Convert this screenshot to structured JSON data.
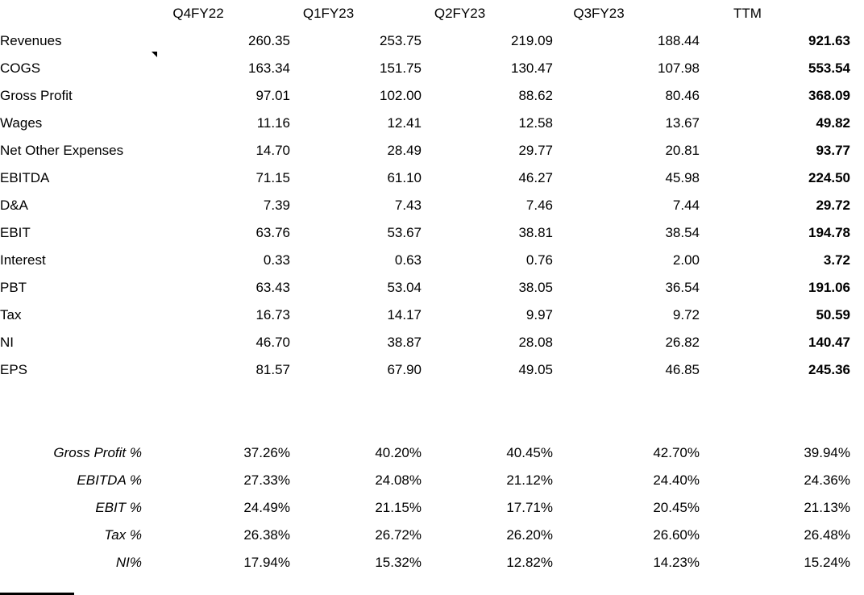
{
  "table": {
    "columns": [
      "",
      "Q4FY22",
      "Q1FY23",
      "Q2FY23",
      "Q3FY23",
      "TTM"
    ],
    "rows": [
      {
        "label": "Revenues",
        "values": [
          "260.35",
          "253.75",
          "219.09",
          "188.44",
          "921.63"
        ]
      },
      {
        "label": "COGS",
        "note": true,
        "values": [
          "163.34",
          "151.75",
          "130.47",
          "107.98",
          "553.54"
        ]
      },
      {
        "label": "Gross Profit",
        "values": [
          "97.01",
          "102.00",
          "88.62",
          "80.46",
          "368.09"
        ]
      },
      {
        "label": "Wages",
        "values": [
          "11.16",
          "12.41",
          "12.58",
          "13.67",
          "49.82"
        ]
      },
      {
        "label": "Net Other Expenses",
        "values": [
          "14.70",
          "28.49",
          "29.77",
          "20.81",
          "93.77"
        ]
      },
      {
        "label": "EBITDA",
        "values": [
          "71.15",
          "61.10",
          "46.27",
          "45.98",
          "224.50"
        ]
      },
      {
        "label": "D&A",
        "values": [
          "7.39",
          "7.43",
          "7.46",
          "7.44",
          "29.72"
        ]
      },
      {
        "label": "EBIT",
        "values": [
          "63.76",
          "53.67",
          "38.81",
          "38.54",
          "194.78"
        ]
      },
      {
        "label": "Interest",
        "values": [
          "0.33",
          "0.63",
          "0.76",
          "2.00",
          "3.72"
        ]
      },
      {
        "label": "PBT",
        "values": [
          "63.43",
          "53.04",
          "38.05",
          "36.54",
          "191.06"
        ]
      },
      {
        "label": "Tax",
        "values": [
          "16.73",
          "14.17",
          "9.97",
          "9.72",
          "50.59"
        ]
      },
      {
        "label": "NI",
        "values": [
          "46.70",
          "38.87",
          "28.08",
          "26.82",
          "140.47"
        ]
      },
      {
        "label": "EPS",
        "values": [
          "81.57",
          "67.90",
          "49.05",
          "46.85",
          "245.36"
        ]
      }
    ],
    "ratio_rows": [
      {
        "label": "Gross Profit %",
        "values": [
          "37.26%",
          "40.20%",
          "40.45%",
          "42.70%",
          "39.94%"
        ]
      },
      {
        "label": "EBITDA %",
        "values": [
          "27.33%",
          "24.08%",
          "21.12%",
          "24.40%",
          "24.36%"
        ]
      },
      {
        "label": "EBIT %",
        "values": [
          "24.49%",
          "21.15%",
          "17.71%",
          "20.45%",
          "21.13%"
        ]
      },
      {
        "label": "Tax %",
        "values": [
          "26.38%",
          "26.72%",
          "26.20%",
          "26.60%",
          "26.48%"
        ]
      },
      {
        "label": "NI%",
        "values": [
          "17.94%",
          "15.32%",
          "12.82%",
          "14.23%",
          "15.24%"
        ]
      }
    ]
  },
  "icons": {
    "note_marker": "cell-note-triangle"
  },
  "colors": {
    "text": "#000000",
    "background": "#ffffff",
    "note_marker": "#000000"
  }
}
